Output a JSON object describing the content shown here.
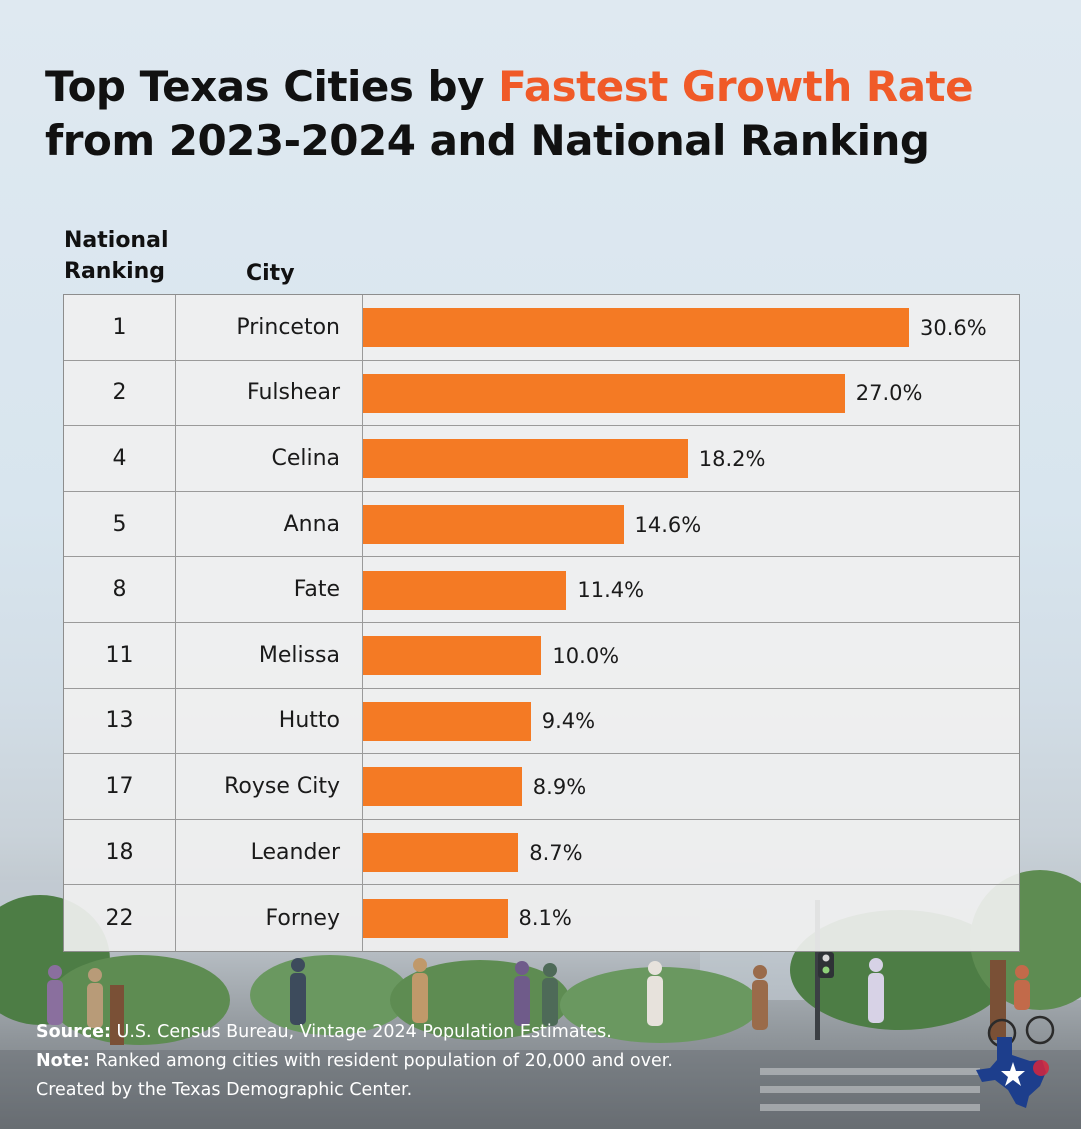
{
  "title": {
    "part1": "Top Texas Cities by ",
    "accent": "Fastest Growth Rate",
    "line2": "from 2023-2024 and National Ranking"
  },
  "headers": {
    "rank_line1": "National",
    "rank_line2": "Ranking",
    "city": "City"
  },
  "colors": {
    "accent": "#f05a28",
    "bar": "#f47a24"
  },
  "chart_data": {
    "type": "bar",
    "orientation": "horizontal",
    "title": "Top Texas Cities by Fastest Growth Rate from 2023-2024 and National Ranking",
    "xlim": [
      0,
      30.6
    ],
    "rows": [
      {
        "rank": "1",
        "city": "Princeton",
        "value": 30.6,
        "label": "30.6%"
      },
      {
        "rank": "2",
        "city": "Fulshear",
        "value": 27.0,
        "label": "27.0%"
      },
      {
        "rank": "4",
        "city": "Celina",
        "value": 18.2,
        "label": "18.2%"
      },
      {
        "rank": "5",
        "city": "Anna",
        "value": 14.6,
        "label": "14.6%"
      },
      {
        "rank": "8",
        "city": "Fate",
        "value": 11.4,
        "label": "11.4%"
      },
      {
        "rank": "11",
        "city": "Melissa",
        "value": 10.0,
        "label": "10.0%"
      },
      {
        "rank": "13",
        "city": "Hutto",
        "value": 9.4,
        "label": "9.4%"
      },
      {
        "rank": "17",
        "city": "Royse City",
        "value": 8.9,
        "label": "8.9%"
      },
      {
        "rank": "18",
        "city": "Leander",
        "value": 8.7,
        "label": "8.7%"
      },
      {
        "rank": "22",
        "city": "Forney",
        "value": 8.1,
        "label": "8.1%"
      }
    ]
  },
  "footer": {
    "source_label": "Source:",
    "source_text": " U.S. Census Bureau, Vintage 2024 Population Estimates.",
    "note_label": "Note:",
    "note_text": " Ranked among cities with resident population of 20,000 and over.",
    "credit": "Created by the Texas Demographic Center."
  }
}
